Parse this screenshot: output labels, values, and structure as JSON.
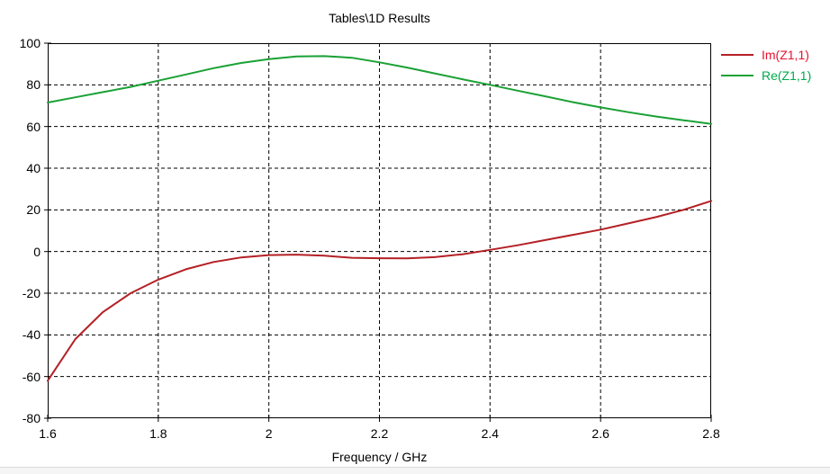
{
  "window": {
    "background": "#ffffff",
    "bottom_edge_color": "#d9d9d9",
    "bottom_fill_color": "#f5f5f5"
  },
  "chart_data": {
    "type": "line",
    "title": "Tables\\1D Results",
    "xlabel": "Frequency / GHz",
    "ylabel": "",
    "xlim": [
      1.6,
      2.8
    ],
    "ylim": [
      -80,
      100
    ],
    "x_tick_values": [
      1.6,
      1.8,
      2.0,
      2.2,
      2.4,
      2.6,
      2.8
    ],
    "x_tick_labels": [
      "1.6",
      "1.8",
      "2",
      "2.2",
      "2.4",
      "2.6",
      "2.8"
    ],
    "y_tick_values": [
      100,
      80,
      60,
      40,
      20,
      0,
      -20,
      -40,
      -60,
      -80
    ],
    "y_tick_labels": [
      "100",
      "80",
      "60",
      "40",
      "20",
      "0",
      "-20",
      "-40",
      "-60",
      "-80"
    ],
    "grid": "dashed-black",
    "axis_color": "#000000",
    "legend_position": "outside-top-right",
    "x": [
      1.6,
      1.65,
      1.7,
      1.75,
      1.8,
      1.85,
      1.9,
      1.95,
      2.0,
      2.05,
      2.1,
      2.15,
      2.2,
      2.25,
      2.3,
      2.35,
      2.4,
      2.45,
      2.5,
      2.55,
      2.6,
      2.65,
      2.7,
      2.75,
      2.8
    ],
    "series": [
      {
        "name": "Im(Z1,1)",
        "line_color": "#b42025",
        "label_color": "#e8112d",
        "values": [
          -62,
          -42,
          -29,
          -20,
          -13.5,
          -8.5,
          -5,
          -2.8,
          -1.7,
          -1.5,
          -2,
          -3,
          -3.2,
          -3.3,
          -2.7,
          -1.3,
          0.8,
          3,
          5.5,
          8,
          10.5,
          13.5,
          16.5,
          20,
          24.3
        ]
      },
      {
        "name": "Re(Z1,1)",
        "line_color": "#1aa135",
        "label_color": "#00a94e",
        "values": [
          71.5,
          74,
          76.5,
          79,
          82,
          85,
          88,
          90.5,
          92.3,
          93.6,
          93.8,
          93,
          90.8,
          88.3,
          85.5,
          82.7,
          80,
          77.2,
          74.5,
          71.7,
          69.2,
          66.9,
          64.8,
          63,
          61.3
        ]
      }
    ]
  }
}
